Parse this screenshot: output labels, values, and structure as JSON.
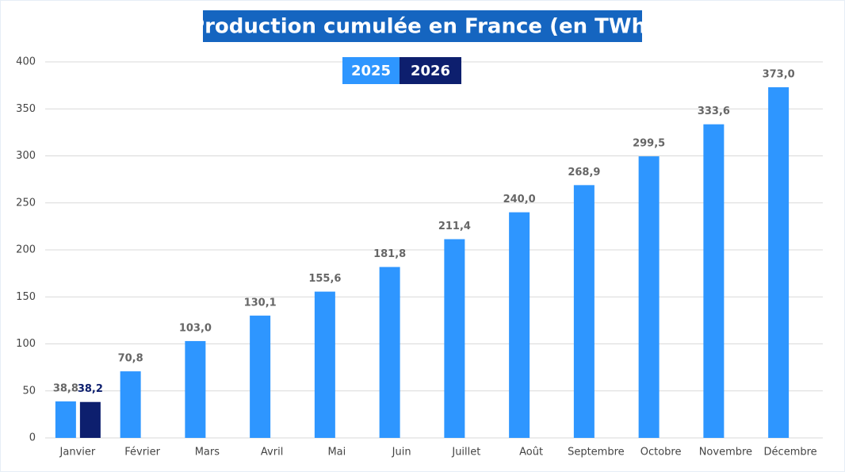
{
  "chart_data": {
    "type": "bar",
    "title": "Production cumulée en France (en TWh)",
    "categories": [
      "Janvier",
      "Février",
      "Mars",
      "Avril",
      "Mai",
      "Juin",
      "Juillet",
      "Août",
      "Septembre",
      "Octobre",
      "Novembre",
      "Décembre"
    ],
    "series": [
      {
        "name": "2025",
        "color": "#2e96ff",
        "values": [
          38.8,
          70.8,
          103.0,
          130.1,
          155.6,
          181.8,
          211.4,
          240.0,
          268.9,
          299.5,
          333.6,
          373.0
        ],
        "value_labels": [
          "38,8",
          "70,8",
          "103,0",
          "130,1",
          "155,6",
          "181,8",
          "211,4",
          "240,0",
          "268,9",
          "299,5",
          "333,6",
          "373,0"
        ]
      },
      {
        "name": "2026",
        "color": "#0d1f6e",
        "values": [
          38.2,
          null,
          null,
          null,
          null,
          null,
          null,
          null,
          null,
          null,
          null,
          null
        ],
        "value_labels": [
          "38,2",
          null,
          null,
          null,
          null,
          null,
          null,
          null,
          null,
          null,
          null,
          null
        ]
      }
    ],
    "ylim": [
      0,
      400
    ],
    "yticks": [
      0,
      50,
      100,
      150,
      200,
      250,
      300,
      350,
      400
    ],
    "grid": true
  }
}
